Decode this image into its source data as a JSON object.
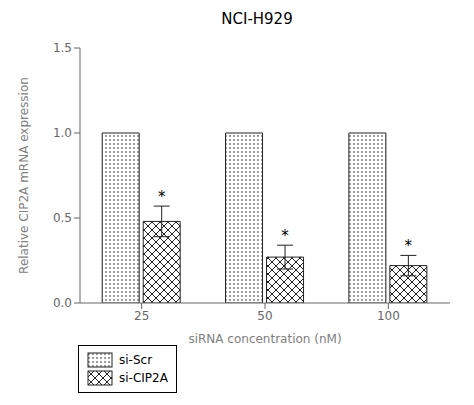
{
  "chart_data": {
    "type": "bar",
    "title": "NCI-H929",
    "xlabel": "siRNA concentration (nM)",
    "ylabel": "Relative CIP2A mRNA expression",
    "categories": [
      "25",
      "50",
      "100"
    ],
    "series": [
      {
        "name": "si-Scr",
        "color": "white",
        "values": [
          1.0,
          1.0,
          1.0
        ]
      },
      {
        "name": "si-CIP2A",
        "color": "white",
        "values": [
          0.48,
          0.27,
          0.22
        ],
        "errors": [
          0.09,
          0.07,
          0.06
        ]
      }
    ],
    "ylim": [
      0.0,
      1.5
    ],
    "yticks": [
      {
        "value": 0.0,
        "label": "0.0"
      },
      0.5,
      {
        "value": 1.0,
        "label": "1.0"
      },
      1.5
    ],
    "grid": false,
    "legend": "lower left",
    "annotations": [
      {
        "text": "*",
        "series": "si-CIP2A",
        "category": "25"
      },
      {
        "text": "*",
        "series": "si-CIP2A",
        "category": "50"
      },
      {
        "text": "*",
        "series": "si-CIP2A",
        "category": "100"
      }
    ]
  }
}
